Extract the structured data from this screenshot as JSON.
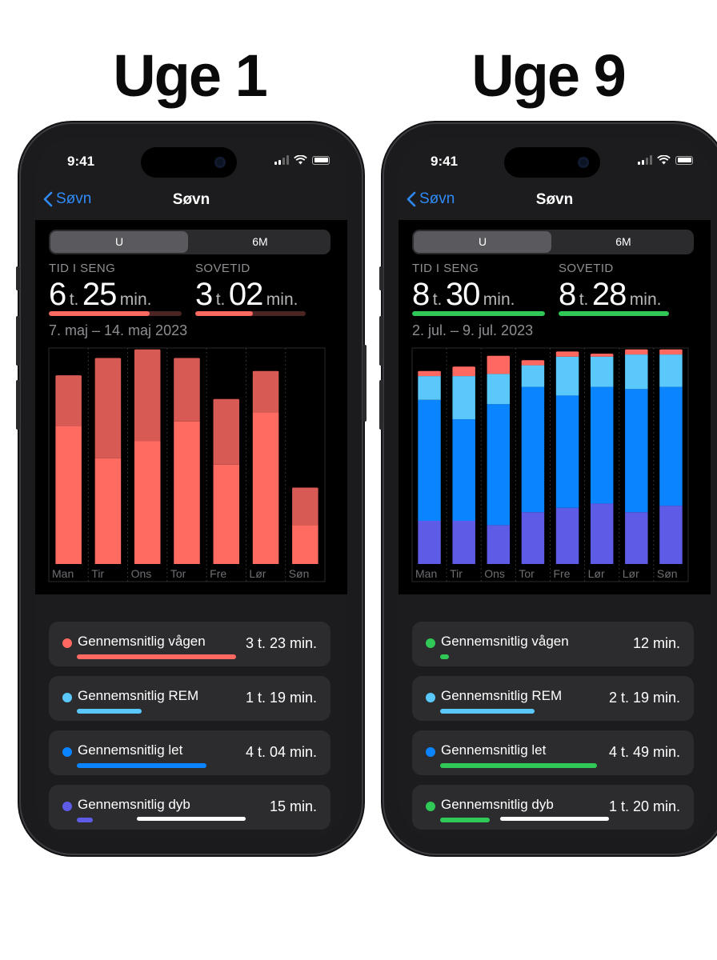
{
  "headings": [
    "Uge 1",
    "Uge 9"
  ],
  "phones": [
    {
      "status_time": "9:41",
      "nav": {
        "back_label": "Søvn",
        "title": "Søvn"
      },
      "segments": [
        "U",
        "6M"
      ],
      "stats": [
        {
          "label": "TID I SENG",
          "hours": "6",
          "hours_unit": "t.",
          "minutes": "25",
          "minutes_unit": "min.",
          "progress": 0.76,
          "color": "#ff6961",
          "track": "#4a2422"
        },
        {
          "label": "SOVETID",
          "hours": "3",
          "hours_unit": "t.",
          "minutes": "02",
          "minutes_unit": "min.",
          "progress": 0.52,
          "color": "#ff6961",
          "track": "#4a2422"
        }
      ],
      "date_range": "7. maj – 14. maj 2023",
      "chart_data": {
        "type": "bar",
        "categories": [
          "Man",
          "Tir",
          "Ons",
          "Tor",
          "Fre",
          "Lør",
          "Søn"
        ],
        "stack_colors": [
          "#ff6b60",
          "#d85a54"
        ],
        "stacks": [
          [
            0.64,
            0.23
          ],
          [
            0.49,
            0.46
          ],
          [
            0.57,
            0.42
          ],
          [
            0.66,
            0.29
          ],
          [
            0.46,
            0.3
          ],
          [
            0.7,
            0.19
          ],
          [
            0.18,
            0.17
          ]
        ]
      },
      "rows": [
        {
          "label": "Gennemsnitlig vågen",
          "value": "3 t. 23 min.",
          "dot": "#ff6961",
          "bar": "#ff6961",
          "fraction": 0.71
        },
        {
          "label": "Gennemsnitlig REM",
          "value": "1 t. 19 min.",
          "dot": "#5ac8fa",
          "bar": "#5ac8fa",
          "fraction": 0.29
        },
        {
          "label": "Gennemsnitlig let",
          "value": "4 t. 04 min.",
          "dot": "#0a84ff",
          "bar": "#0a84ff",
          "fraction": 0.58
        },
        {
          "label": "Gennemsnitlig dyb",
          "value": "15 min.",
          "dot": "#5e5ce6",
          "bar": "#5e5ce6",
          "fraction": 0.07
        }
      ]
    },
    {
      "status_time": "9:41",
      "nav": {
        "back_label": "Søvn",
        "title": "Søvn"
      },
      "segments": [
        "U",
        "6M"
      ],
      "stats": [
        {
          "label": "TID I SENG",
          "hours": "8",
          "hours_unit": "t.",
          "minutes": "30",
          "minutes_unit": "min.",
          "progress": 1.0,
          "color": "#30c957",
          "track": "#1e3b25"
        },
        {
          "label": "SOVETID",
          "hours": "8",
          "hours_unit": "t.",
          "minutes": "28",
          "minutes_unit": "min.",
          "progress": 1.0,
          "color": "#30c957",
          "track": "#1e3b25"
        }
      ],
      "date_range": "2. jul. – 9. jul. 2023",
      "chart_data": {
        "type": "bar",
        "categories": [
          "Man",
          "Tir",
          "Ons",
          "Tor",
          "Fre",
          "Lør",
          "Lør",
          "Søn"
        ],
        "stack_colors": [
          "#5e5ce6",
          "#0a84ff",
          "#5ac8fa",
          "#ff6961"
        ],
        "stacks": [
          [
            0.2,
            0.56,
            0.11,
            0.02
          ],
          [
            0.2,
            0.47,
            0.2,
            0.04
          ],
          [
            0.18,
            0.56,
            0.14,
            0.08
          ],
          [
            0.24,
            0.58,
            0.1,
            0.02
          ],
          [
            0.26,
            0.52,
            0.18,
            0.02
          ],
          [
            0.28,
            0.54,
            0.14,
            0.01
          ],
          [
            0.24,
            0.57,
            0.16,
            0.02
          ],
          [
            0.27,
            0.55,
            0.15,
            0.02
          ]
        ]
      },
      "rows": [
        {
          "label": "Gennemsnitlig vågen",
          "value": "12 min.",
          "dot": "#30c957",
          "bar": "#30c957",
          "fraction": 0.04
        },
        {
          "label": "Gennemsnitlig REM",
          "value": "2 t. 19 min.",
          "dot": "#5ac8fa",
          "bar": "#5ac8fa",
          "fraction": 0.42
        },
        {
          "label": "Gennemsnitlig let",
          "value": "4 t. 49 min.",
          "dot": "#0a84ff",
          "bar": "#30c957",
          "fraction": 0.7
        },
        {
          "label": "Gennemsnitlig dyb",
          "value": "1 t. 20 min.",
          "dot": "#30c957",
          "bar": "#30c957",
          "fraction": 0.22
        }
      ]
    }
  ]
}
